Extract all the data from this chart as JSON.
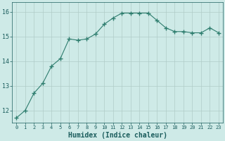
{
  "x": [
    0,
    1,
    2,
    3,
    4,
    5,
    6,
    7,
    8,
    9,
    10,
    11,
    12,
    13,
    14,
    15,
    16,
    17,
    18,
    19,
    20,
    21,
    22,
    23
  ],
  "y": [
    11.7,
    12.0,
    12.7,
    13.1,
    13.8,
    14.1,
    14.9,
    14.85,
    14.9,
    15.1,
    15.5,
    15.75,
    15.95,
    15.95,
    15.95,
    15.95,
    15.65,
    15.35,
    15.2,
    15.2,
    15.15,
    15.15,
    15.35,
    15.15
  ],
  "line_color": "#2e7d6e",
  "marker": "+",
  "marker_size": 4,
  "bg_color": "#ceeae7",
  "grid_color": "#b0ccc8",
  "tick_color": "#1a5c5c",
  "xlabel": "Humidex (Indice chaleur)",
  "xlabel_fontsize": 7,
  "ylabel_ticks": [
    12,
    13,
    14,
    15,
    16
  ],
  "ylim": [
    11.5,
    16.4
  ],
  "xlim": [
    -0.5,
    23.5
  ],
  "title": ""
}
